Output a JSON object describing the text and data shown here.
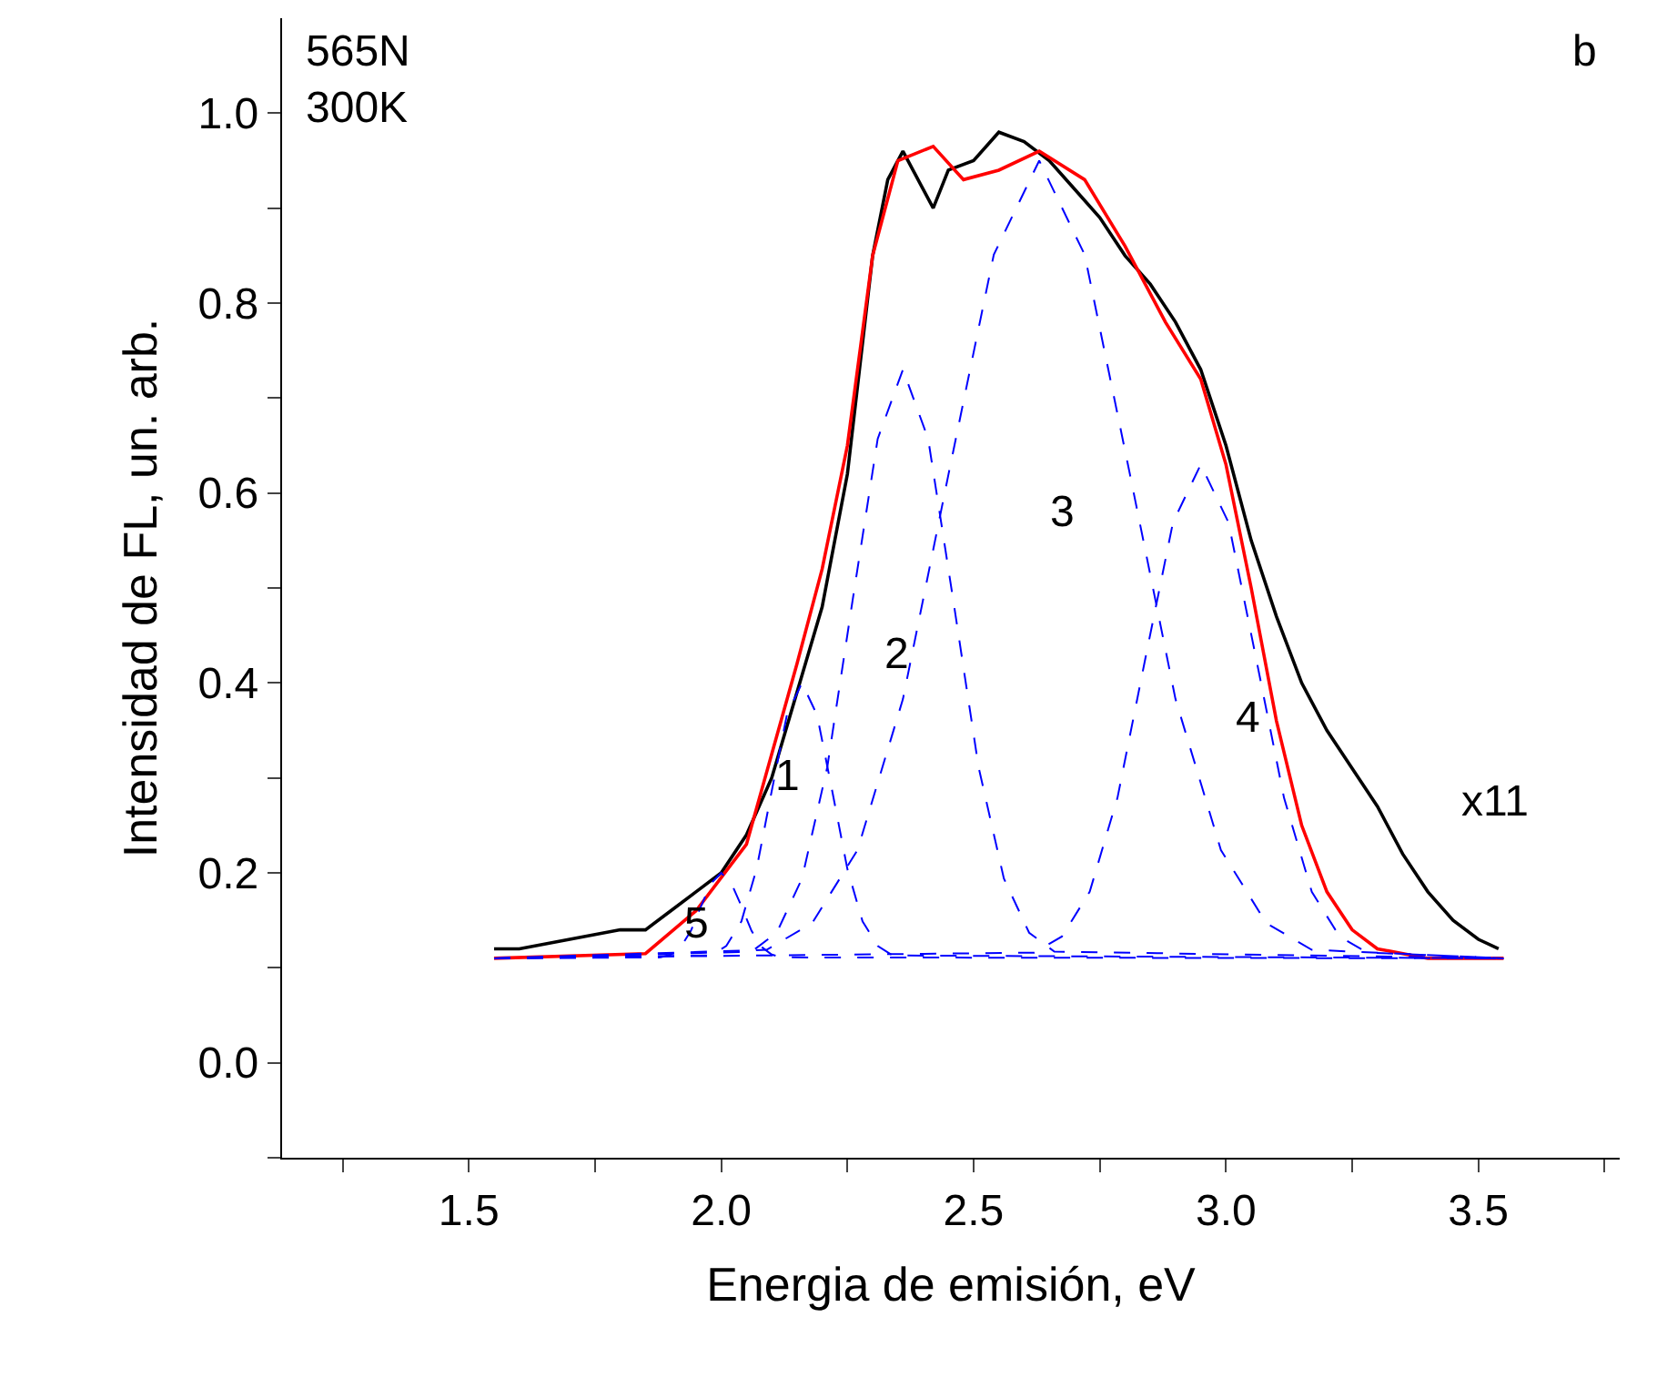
{
  "chart_data": {
    "type": "line",
    "xlabel": "Energia de emisión, eV",
    "ylabel": "Intensidad de FL, un. arb.",
    "xlim": [
      1.13,
      3.78
    ],
    "ylim": [
      -0.1,
      1.1
    ],
    "xticks": [
      {
        "value": 1.25,
        "label": null
      },
      1.5,
      {
        "value": 1.75,
        "label": null
      },
      {
        "value": 2,
        "label": "2.0"
      },
      {
        "value": 2.25,
        "label": null
      },
      2.5,
      {
        "value": 2.75,
        "label": null
      },
      {
        "value": 3,
        "label": "3.0"
      },
      {
        "value": 3.25,
        "label": null
      },
      3.5,
      {
        "value": 3.75,
        "label": null
      }
    ],
    "yticks": [
      {
        "value": -0.1,
        "label": null
      },
      {
        "value": 0,
        "label": "0.0"
      },
      {
        "value": 0.1,
        "label": null
      },
      0.2,
      {
        "value": 0.3,
        "label": null
      },
      0.4,
      {
        "value": 0.5,
        "label": null
      },
      0.6,
      {
        "value": 0.7,
        "label": null
      },
      0.8,
      {
        "value": 0.9,
        "label": null
      },
      {
        "value": 1,
        "label": "1.0"
      }
    ],
    "grid": false,
    "line_style": "solid",
    "marker": "none",
    "series": [
      {
        "color": "#000000",
        "x": [
          1.55,
          1.6,
          1.7,
          1.8,
          1.85,
          1.9,
          1.95,
          2.0,
          2.05,
          2.1,
          2.15,
          2.2,
          2.25,
          2.3,
          2.33,
          2.36,
          2.4,
          2.42,
          2.45,
          2.5,
          2.55,
          2.6,
          2.65,
          2.7,
          2.75,
          2.8,
          2.85,
          2.9,
          2.95,
          3.0,
          3.05,
          3.1,
          3.15,
          3.2,
          3.25,
          3.3,
          3.35,
          3.4,
          3.45,
          3.5,
          3.54
        ],
        "values": [
          0.12,
          0.12,
          0.13,
          0.14,
          0.14,
          0.16,
          0.18,
          0.2,
          0.24,
          0.3,
          0.39,
          0.48,
          0.62,
          0.85,
          0.93,
          0.96,
          0.92,
          0.9,
          0.94,
          0.95,
          0.98,
          0.97,
          0.95,
          0.92,
          0.89,
          0.85,
          0.82,
          0.78,
          0.73,
          0.65,
          0.55,
          0.47,
          0.4,
          0.35,
          0.31,
          0.27,
          0.22,
          0.18,
          0.15,
          0.13,
          0.12
        ]
      },
      {
        "color": "#ff0000",
        "x": [
          1.55,
          1.85,
          1.95,
          2.05,
          2.15,
          2.2,
          2.25,
          2.3,
          2.35,
          2.42,
          2.48,
          2.55,
          2.63,
          2.72,
          2.8,
          2.88,
          2.95,
          3.0,
          3.05,
          3.1,
          3.15,
          3.2,
          3.25,
          3.3,
          3.4,
          3.55
        ],
        "values": [
          0.11,
          0.115,
          0.16,
          0.23,
          0.42,
          0.52,
          0.65,
          0.85,
          0.95,
          0.965,
          0.93,
          0.94,
          0.96,
          0.93,
          0.86,
          0.78,
          0.72,
          0.63,
          0.5,
          0.36,
          0.25,
          0.18,
          0.14,
          0.12,
          0.11,
          0.11
        ]
      },
      {
        "color": "#0000ff",
        "line_style": "dashed",
        "x": [
          1.55,
          1.88,
          1.9,
          1.92,
          1.94,
          1.96,
          1.98,
          2.0,
          2.02,
          2.04,
          2.06,
          2.08,
          2.1,
          2.12,
          3.55
        ],
        "values": [
          0.11,
          0.111,
          0.114,
          0.122,
          0.139,
          0.165,
          0.189,
          0.2,
          0.189,
          0.165,
          0.139,
          0.122,
          0.114,
          0.111,
          0.11
        ]
      },
      {
        "color": "#0000ff",
        "line_style": "dashed",
        "x": [
          1.55,
          1.98,
          2.01,
          2.04,
          2.07,
          2.1,
          2.13,
          2.16,
          2.19,
          2.22,
          2.25,
          2.28,
          2.31,
          2.34,
          3.55
        ],
        "values": [
          0.11,
          0.113,
          0.123,
          0.149,
          0.204,
          0.286,
          0.366,
          0.4,
          0.366,
          0.286,
          0.204,
          0.149,
          0.123,
          0.113,
          0.11
        ]
      },
      {
        "color": "#0000ff",
        "line_style": "dashed",
        "x": [
          1.55,
          2.06,
          2.11,
          2.16,
          2.21,
          2.26,
          2.31,
          2.36,
          2.41,
          2.46,
          2.51,
          2.56,
          2.61,
          2.66,
          3.55
        ],
        "values": [
          0.11,
          0.117,
          0.137,
          0.194,
          0.311,
          0.486,
          0.657,
          0.73,
          0.657,
          0.486,
          0.311,
          0.194,
          0.137,
          0.117,
          0.11
        ]
      },
      {
        "color": "#0000ff",
        "line_style": "dashed",
        "x": [
          1.55,
          2.09,
          2.18,
          2.27,
          2.36,
          2.45,
          2.54,
          2.63,
          2.72,
          2.81,
          2.9,
          2.99,
          3.08,
          3.17,
          3.55
        ],
        "values": [
          0.11,
          0.119,
          0.147,
          0.224,
          0.383,
          0.619,
          0.851,
          0.95,
          0.851,
          0.619,
          0.383,
          0.224,
          0.147,
          0.119,
          0.11
        ]
      },
      {
        "color": "#0000ff",
        "line_style": "dashed",
        "x": [
          1.55,
          2.62,
          2.675,
          2.73,
          2.785,
          2.84,
          2.895,
          2.95,
          3.005,
          3.06,
          3.115,
          3.17,
          3.225,
          3.28,
          3.55
        ],
        "values": [
          0.11,
          0.116,
          0.133,
          0.18,
          0.279,
          0.425,
          0.569,
          0.63,
          0.569,
          0.425,
          0.279,
          0.18,
          0.133,
          0.116,
          0.11
        ]
      }
    ],
    "annotations": [
      "565N\n300K",
      "b",
      "5",
      "1",
      "2",
      "3",
      "4",
      "x11"
    ]
  }
}
